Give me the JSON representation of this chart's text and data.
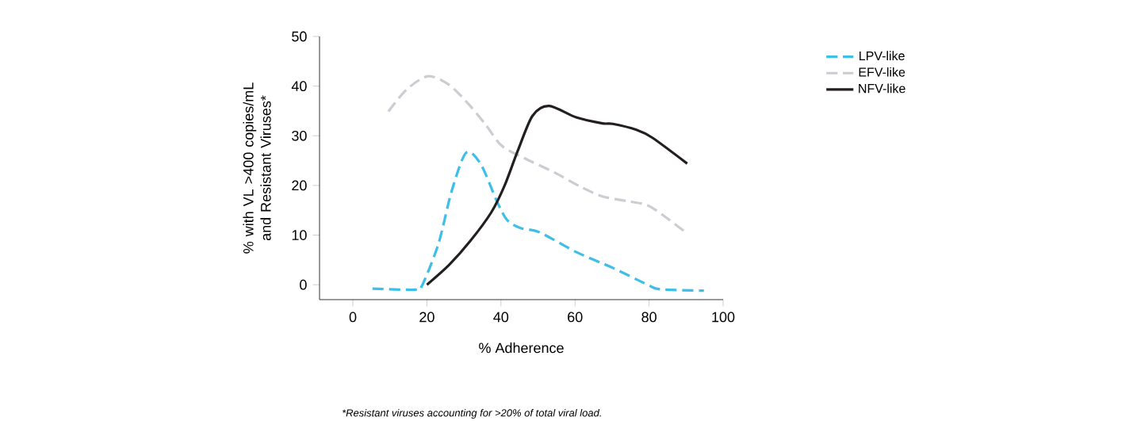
{
  "chart_data": {
    "type": "line",
    "xlabel": "% Adherence",
    "ylabel": "% with VL >400 copies/mL and Resistant Viruses*",
    "xlim": [
      -9,
      100
    ],
    "ylim": [
      -3,
      50
    ],
    "xticks": [
      0,
      20,
      40,
      60,
      80,
      100
    ],
    "yticks": [
      0,
      10,
      20,
      30,
      40,
      50
    ],
    "grid": false,
    "legend": "top right",
    "marker": "none",
    "annotations": [
      "*Resistant viruses accounting for >20% of total viral load."
    ],
    "series": [
      {
        "name": "LPV-like",
        "color": "#3fbfe8",
        "line_style": "dashed",
        "x": [
          5.3,
          16.7,
          18.6,
          23.1,
          26.7,
          30.6,
          34.6,
          38.9,
          41.7,
          45.3,
          50.3,
          60.3,
          70.2,
          79.6,
          83,
          94.8
        ],
        "values": [
          -0.8,
          -1,
          -0.3,
          8.2,
          18.9,
          26.6,
          24.2,
          16.8,
          13,
          11.4,
          10.6,
          6.6,
          3.4,
          0,
          -0.9,
          -1.2
        ]
      },
      {
        "name": "EFV-like",
        "color": "#cccdd2",
        "line_style": "dashed",
        "x": [
          9.6,
          14.5,
          20.3,
          26.1,
          31.7,
          35.9,
          40.2,
          46.3,
          54.5,
          61.6,
          67.4,
          74.4,
          79.6,
          84.5,
          90.3
        ],
        "values": [
          34.9,
          39.3,
          42,
          40.2,
          36,
          32.2,
          28,
          25.5,
          22.6,
          19.7,
          17.8,
          16.8,
          16,
          13.6,
          10.3
        ]
      },
      {
        "name": "NFV-like",
        "color": "#231f20",
        "line_style": "solid",
        "x": [
          20,
          26,
          31.7,
          37.4,
          41,
          44.5,
          48.5,
          53,
          60.3,
          67.4,
          70.2,
          76.6,
          80.9,
          90.3
        ],
        "values": [
          0,
          4,
          8.8,
          14.6,
          20,
          26.9,
          34,
          36,
          33.7,
          32.5,
          32.4,
          31.2,
          29.6,
          24.4
        ]
      }
    ]
  }
}
